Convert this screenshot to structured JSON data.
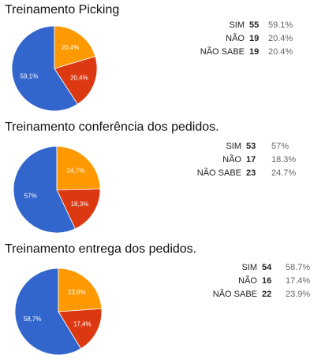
{
  "colors": {
    "sim": "#3366cc",
    "nao": "#dc3912",
    "nao_sabe": "#ff9900"
  },
  "chart_data": [
    {
      "type": "pie",
      "title": "Treinamento Picking",
      "categories": [
        "SIM",
        "NÃO",
        "NÃO SABE"
      ],
      "counts": [
        55,
        19,
        19
      ],
      "percent_labels": [
        "59.1%",
        "20.4%",
        "20.4%"
      ],
      "slice_labels": [
        "59,1%",
        "20,4%",
        "20,4%"
      ],
      "values": [
        59.1,
        20.4,
        20.4
      ],
      "legend": "right"
    },
    {
      "type": "pie",
      "title": "Treinamento conferência dos pedidos.",
      "categories": [
        "SIM",
        "NÃO",
        "NÃO SABE"
      ],
      "counts": [
        53,
        17,
        23
      ],
      "percent_labels": [
        "57%",
        "18.3%",
        "24.7%"
      ],
      "slice_labels": [
        "57%",
        "18,3%",
        "24,7%"
      ],
      "values": [
        57,
        18.3,
        24.7
      ],
      "legend": "right"
    },
    {
      "type": "pie",
      "title": "Treinamento entrega dos pedidos.",
      "categories": [
        "SIM",
        "NÃO",
        "NÃO SABE"
      ],
      "counts": [
        54,
        16,
        22
      ],
      "percent_labels": [
        "58.7%",
        "17.4%",
        "23.9%"
      ],
      "slice_labels": [
        "58,7%",
        "17,4%",
        "23,9%"
      ],
      "values": [
        58.7,
        17.4,
        23.9
      ],
      "legend": "right"
    }
  ]
}
